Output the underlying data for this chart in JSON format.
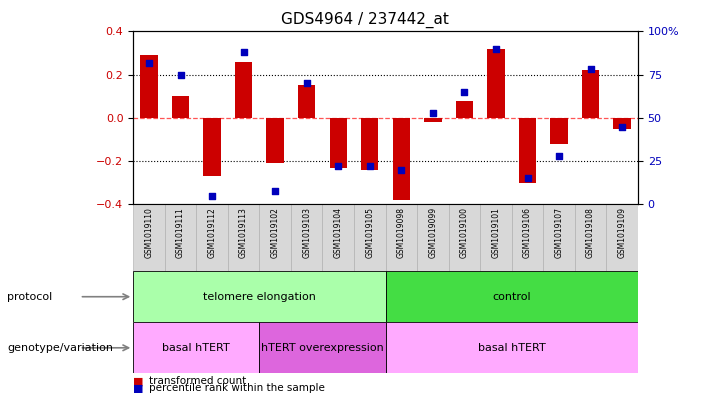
{
  "title": "GDS4964 / 237442_at",
  "samples": [
    "GSM1019110",
    "GSM1019111",
    "GSM1019112",
    "GSM1019113",
    "GSM1019102",
    "GSM1019103",
    "GSM1019104",
    "GSM1019105",
    "GSM1019098",
    "GSM1019099",
    "GSM1019100",
    "GSM1019101",
    "GSM1019106",
    "GSM1019107",
    "GSM1019108",
    "GSM1019109"
  ],
  "transformed_count": [
    0.29,
    0.1,
    -0.27,
    0.26,
    -0.21,
    0.15,
    -0.23,
    -0.24,
    -0.38,
    -0.02,
    0.08,
    0.32,
    -0.3,
    -0.12,
    0.22,
    -0.05
  ],
  "percentile_rank": [
    82,
    75,
    5,
    88,
    8,
    70,
    22,
    22,
    20,
    53,
    65,
    90,
    15,
    28,
    78,
    45
  ],
  "ylim_left": [
    -0.4,
    0.4
  ],
  "ylim_right": [
    0,
    100
  ],
  "yticks_left": [
    -0.4,
    -0.2,
    0.0,
    0.2,
    0.4
  ],
  "yticks_right": [
    0,
    25,
    50,
    75,
    100
  ],
  "bar_color": "#CC0000",
  "dot_color": "#0000BB",
  "zero_line_color": "#FF5555",
  "bg_color": "#FFFFFF",
  "protocol_groups": [
    {
      "label": "telomere elongation",
      "start": 0,
      "end": 7,
      "color": "#AAFFAA"
    },
    {
      "label": "control",
      "start": 8,
      "end": 15,
      "color": "#44DD44"
    }
  ],
  "genotype_groups": [
    {
      "label": "basal hTERT",
      "start": 0,
      "end": 3,
      "color": "#FFAAFF"
    },
    {
      "label": "hTERT overexpression",
      "start": 4,
      "end": 7,
      "color": "#DD66DD"
    },
    {
      "label": "basal hTERT",
      "start": 8,
      "end": 15,
      "color": "#FFAAFF"
    }
  ],
  "protocol_label": "protocol",
  "genotype_label": "genotype/variation",
  "legend_bar_label": "transformed count",
  "legend_dot_label": "percentile rank within the sample",
  "sample_box_color": "#D8D8D8",
  "sample_box_edge": "#AAAAAA"
}
